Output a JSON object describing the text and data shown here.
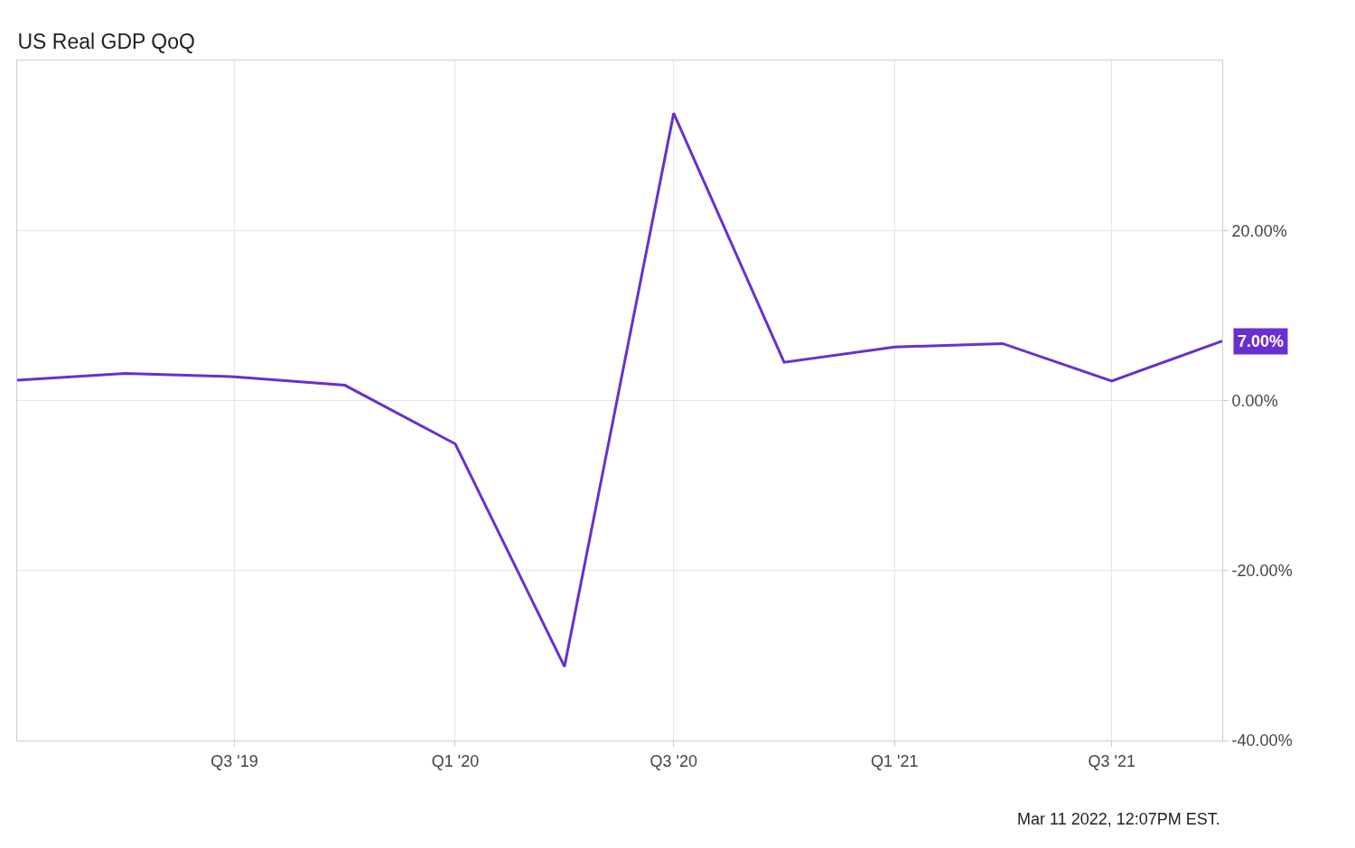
{
  "chart_data": {
    "type": "line",
    "title": "US Real GDP QoQ",
    "x": [
      "2019-01-01",
      "2019-04-01",
      "2019-07-01",
      "2019-10-01",
      "2020-01-01",
      "2020-04-01",
      "2020-07-01",
      "2020-10-01",
      "2021-01-01",
      "2021-04-01",
      "2021-07-01",
      "2021-10-01"
    ],
    "series": [
      {
        "color": "#6a2fd0",
        "values": [
          2.4,
          3.2,
          2.8,
          1.8,
          -5.1,
          -31.3,
          33.8,
          4.5,
          6.3,
          6.7,
          2.3,
          7.0
        ],
        "value_labels": [
          null,
          null,
          null,
          null,
          null,
          null,
          null,
          null,
          null,
          null,
          null,
          "7.00%"
        ]
      }
    ],
    "xlim": [
      "2019-01-01",
      "2021-10-01"
    ],
    "xticks": [
      {
        "value": "2019-07-01",
        "label": "Q3 '19"
      },
      {
        "value": "2020-01-01",
        "label": "Q1 '20"
      },
      {
        "value": "2020-07-01",
        "label": "Q3 '20"
      },
      {
        "value": "2021-01-01",
        "label": "Q1 '21"
      },
      {
        "value": "2021-07-01",
        "label": "Q3 '21"
      }
    ],
    "ylim": [
      -40,
      40
    ],
    "yticks": [
      {
        "value": -40,
        "label": "-40.00%"
      },
      {
        "value": -20,
        "label": "-20.00%"
      },
      {
        "value": 0,
        "label": "0.00%"
      },
      {
        "value": 20,
        "label": "20.00%"
      }
    ],
    "grid": true,
    "marker": "none",
    "line_style": "solid",
    "annotations": [
      "Mar 11 2022, 12:07PM EST."
    ]
  }
}
